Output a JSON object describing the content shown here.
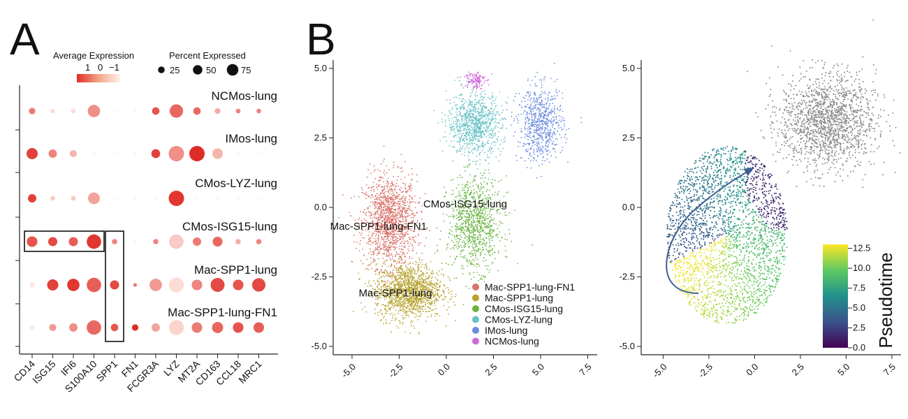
{
  "panel_letters": [
    "A",
    "B"
  ],
  "chart_data": [
    {
      "type": "dotplot",
      "id": "A",
      "genes": [
        "CD14",
        "ISG15",
        "IFI6",
        "S100A10",
        "SPP1",
        "FN1",
        "FCGR3A",
        "LYZ",
        "MT2A",
        "CD163",
        "CCL18",
        "MRC1"
      ],
      "clusters": [
        "NCMos-lung",
        "IMos-lung",
        "CMos-LYZ-lung",
        "CMos-ISG15-lung",
        "Mac-SPP1-lung",
        "Mac-SPP1-lung-FN1"
      ],
      "avg_expression": [
        [
          0.2,
          -0.8,
          -0.8,
          0.0,
          -1.0,
          -1.0,
          0.6,
          0.4,
          0.4,
          -0.3,
          0.1,
          0.1
        ],
        [
          0.8,
          0.1,
          -0.4,
          -1.0,
          -1.0,
          -1.0,
          0.8,
          0.0,
          1.0,
          -0.4,
          -0.9,
          -1.0
        ],
        [
          0.8,
          -0.6,
          -0.6,
          -0.2,
          -1.0,
          -1.0,
          -1.0,
          0.9,
          -1.0,
          -1.0,
          -1.0,
          -1.0
        ],
        [
          0.6,
          0.7,
          0.5,
          0.9,
          0.1,
          -1.0,
          0.1,
          -0.6,
          0.2,
          0.4,
          -0.3,
          0.1
        ],
        [
          -0.9,
          0.8,
          0.9,
          0.5,
          0.7,
          0.2,
          -0.1,
          -0.8,
          0.1,
          0.7,
          0.6,
          0.7
        ],
        [
          -0.9,
          -0.1,
          0.0,
          0.4,
          0.6,
          1.0,
          -0.2,
          -0.7,
          0.2,
          0.4,
          0.6,
          0.5
        ]
      ],
      "pct_expressed": [
        [
          15,
          8,
          8,
          55,
          2,
          2,
          20,
          65,
          20,
          12,
          8,
          8
        ],
        [
          45,
          25,
          18,
          2,
          2,
          2,
          28,
          85,
          85,
          40,
          2,
          2
        ],
        [
          25,
          8,
          8,
          50,
          2,
          2,
          2,
          85,
          2,
          2,
          2,
          2
        ],
        [
          40,
          30,
          30,
          75,
          10,
          2,
          10,
          75,
          25,
          35,
          10,
          10
        ],
        [
          10,
          45,
          55,
          75,
          30,
          5,
          55,
          80,
          40,
          70,
          40,
          65
        ],
        [
          8,
          18,
          25,
          75,
          20,
          15,
          25,
          80,
          40,
          45,
          40,
          40
        ]
      ],
      "legend": {
        "color_title": "Average Expression",
        "color_ticks": [
          "1",
          "0",
          "−1"
        ],
        "size_title": "Percent Expressed",
        "size_ticks": [
          "25",
          "50",
          "75"
        ],
        "size_values": [
          25,
          50,
          75
        ],
        "color_high": "#de2d26",
        "color_low": "#fff1ea"
      },
      "highlight_boxes": [
        "CMos-ISG15-lung: CD14–S100A10",
        "SPP1: CMos-ISG15-lung–Mac-SPP1-lung-FN1"
      ]
    },
    {
      "type": "scatter",
      "id": "B-clusters",
      "xlim": [
        -6,
        8
      ],
      "ylim": [
        -5.3,
        5.3
      ],
      "xticks": [
        "-5.0",
        "-2.5",
        "0.0",
        "2.5",
        "5.0",
        "7.5"
      ],
      "xtick_values": [
        -5,
        -2.5,
        0,
        2.5,
        5,
        7.5
      ],
      "yticks": [
        "5.0",
        "2.5",
        "0.0",
        "-2.5",
        "-5.0"
      ],
      "ytick_values": [
        5,
        2.5,
        0,
        -2.5,
        -5
      ],
      "clusters": [
        {
          "name": "Mac-SPP1-lung-FN1",
          "color": "#d9746c",
          "center": [
            -3.0,
            -0.5
          ],
          "spread": [
            1.3,
            1.5
          ],
          "n": 1400
        },
        {
          "name": "Mac-SPP1-lung",
          "color": "#b7a22c",
          "center": [
            -2.0,
            -3.0
          ],
          "spread": [
            1.6,
            0.9
          ],
          "n": 1400
        },
        {
          "name": "CMos-ISG15-lung",
          "color": "#6cb545",
          "center": [
            1.5,
            -0.6
          ],
          "spread": [
            1.3,
            1.5
          ],
          "n": 1000
        },
        {
          "name": "CMos-LYZ-lung",
          "color": "#67c2c5",
          "center": [
            1.5,
            3.0
          ],
          "spread": [
            1.3,
            1.0
          ],
          "n": 900
        },
        {
          "name": "IMos-lung",
          "color": "#6b8ddf",
          "center": [
            5.0,
            3.0
          ],
          "spread": [
            1.1,
            1.2
          ],
          "n": 700
        },
        {
          "name": "NCMos-lung",
          "color": "#cf69d9",
          "center": [
            1.5,
            4.6
          ],
          "spread": [
            0.5,
            0.3
          ],
          "n": 120
        }
      ],
      "annotations": [
        {
          "text": "CMos-ISG15-lung",
          "x": 1.0,
          "y": 0.0
        },
        {
          "text": "Mac-SPP1-lung-FN1",
          "x": -3.6,
          "y": -0.8
        },
        {
          "text": "Mac-SPP1-lung",
          "x": -2.7,
          "y": -3.2
        }
      ],
      "legend_position": "bottom-right"
    },
    {
      "type": "scatter",
      "id": "B-pseudotime",
      "xlim": [
        -6.2,
        8
      ],
      "ylim": [
        -5.3,
        5.3
      ],
      "xticks": [
        "-5.0",
        "-2.5",
        "0.0",
        "2.5",
        "5.0",
        "7.5"
      ],
      "xtick_values": [
        -5,
        -2.5,
        0,
        2.5,
        5,
        7.5
      ],
      "yticks": [
        "5.0",
        "2.5",
        "0.0",
        "-2.5",
        "-5.0"
      ],
      "ytick_values": [
        5,
        2.5,
        0,
        -2.5,
        -5
      ],
      "colorbar": {
        "title": "Pseudotime",
        "ticks": [
          "12.5",
          "10.0",
          "7.5",
          "5.0",
          "2.5",
          "0.0"
        ],
        "tick_values": [
          12.5,
          10,
          7.5,
          5,
          2.5,
          0
        ],
        "range": [
          0,
          13
        ],
        "colormap": [
          "#440154",
          "#3b528b",
          "#21918c",
          "#5ec962",
          "#fde725"
        ]
      },
      "unassigned_color": "#8c8c8c",
      "legend_position": "bottom-right"
    }
  ]
}
